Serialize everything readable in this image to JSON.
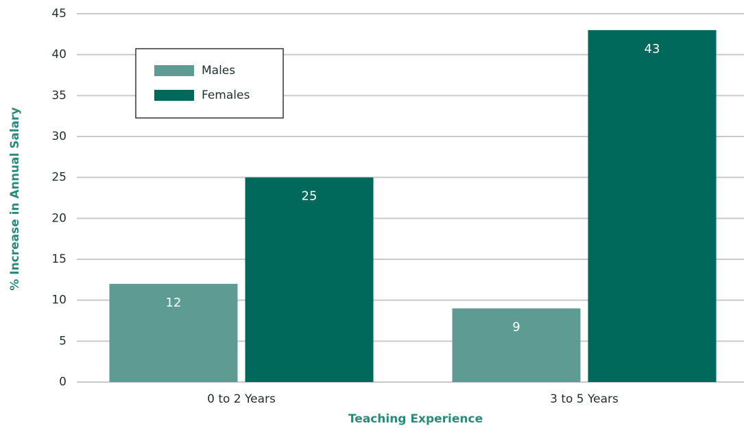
{
  "chart_data": {
    "type": "bar",
    "categories": [
      "0 to 2 Years",
      "3 to 5 Years"
    ],
    "series": [
      {
        "name": "Males",
        "color": "#5e9c93",
        "values": [
          12,
          9
        ]
      },
      {
        "name": "Females",
        "color": "#00695b",
        "values": [
          25,
          43
        ]
      }
    ],
    "xlabel": "Teaching Experience",
    "ylabel": "% Increase in Annual Salary",
    "ylim": [
      0,
      45
    ],
    "yticks": [
      0,
      5,
      10,
      15,
      20,
      25,
      30,
      35,
      40,
      45
    ],
    "grid": true,
    "legend": "upper left"
  }
}
